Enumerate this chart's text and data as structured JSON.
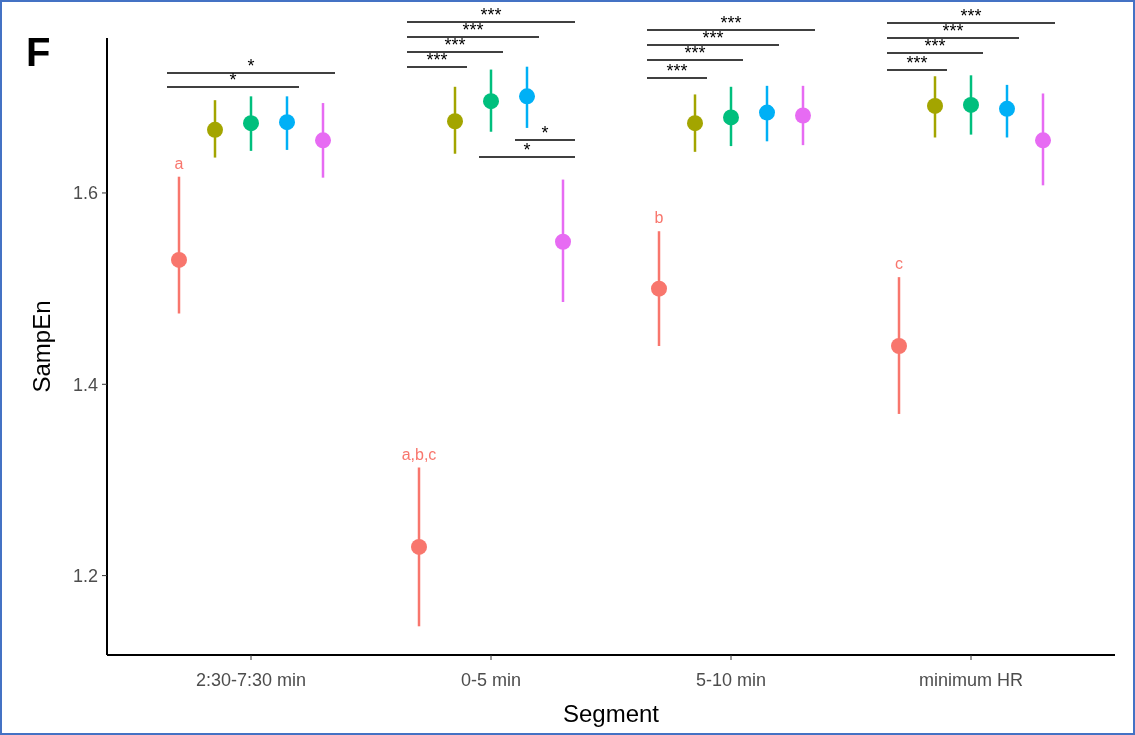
{
  "chart_data": {
    "type": "scatter",
    "title": "F",
    "xlabel": "Segment",
    "ylabel": "SampEn",
    "categories": [
      "2:30-7:30 min",
      "0-5 min",
      "5-10 min",
      "minimum HR"
    ],
    "ylim": [
      1.117,
      1.762
    ],
    "yticks": [
      1.2,
      1.4,
      1.6
    ],
    "grid": false,
    "marker": "circle",
    "series": [
      {
        "color": "#f8766d",
        "values": [
          1.53,
          1.23,
          1.5,
          1.44
        ],
        "errors": [
          [
            1.474,
            1.617
          ],
          [
            1.147,
            1.313
          ],
          [
            1.44,
            1.56
          ],
          [
            1.369,
            1.512
          ]
        ]
      },
      {
        "color": "#a3a500",
        "values": [
          1.666,
          1.675,
          1.673,
          1.691
        ],
        "errors": [
          [
            1.637,
            1.697
          ],
          [
            1.641,
            1.711
          ],
          [
            1.643,
            1.703
          ],
          [
            1.658,
            1.722
          ]
        ]
      },
      {
        "color": "#00bf7d",
        "values": [
          1.673,
          1.696,
          1.679,
          1.692
        ],
        "errors": [
          [
            1.644,
            1.701
          ],
          [
            1.664,
            1.729
          ],
          [
            1.649,
            1.711
          ],
          [
            1.661,
            1.723
          ]
        ]
      },
      {
        "color": "#00b0f6",
        "values": [
          1.674,
          1.701,
          1.684,
          1.688
        ],
        "errors": [
          [
            1.645,
            1.701
          ],
          [
            1.668,
            1.732
          ],
          [
            1.654,
            1.712
          ],
          [
            1.658,
            1.713
          ]
        ]
      },
      {
        "color": "#e76bf3",
        "values": [
          1.655,
          1.549,
          1.681,
          1.655
        ],
        "errors": [
          [
            1.616,
            1.694
          ],
          [
            1.486,
            1.614
          ],
          [
            1.65,
            1.712
          ],
          [
            1.608,
            1.704
          ]
        ]
      }
    ],
    "annotations": [
      "a",
      "a,b,c",
      "b",
      "c",
      "*",
      "*",
      "***",
      "***",
      "***",
      "***",
      "*",
      "*",
      "***",
      "***",
      "***",
      "***",
      "***",
      "***",
      "***",
      "***"
    ]
  }
}
